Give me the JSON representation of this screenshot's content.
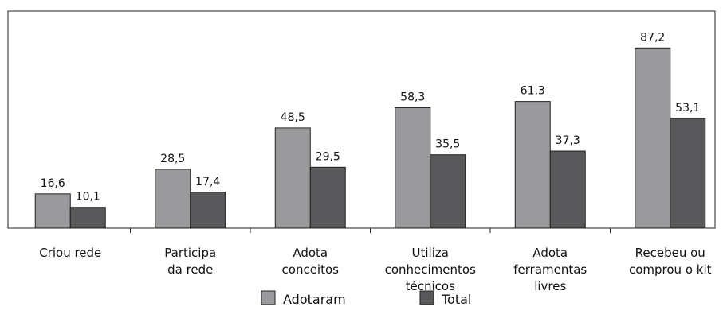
{
  "chart_data": {
    "type": "bar",
    "categories": [
      "Criou rede",
      "Participa\nda rede",
      "Adota\nconceitos",
      "Utiliza\nconhecimentos\ntécnicos",
      "Adota\nferramentas\nlivres",
      "Recebeu ou\ncomprou o kit"
    ],
    "series": [
      {
        "name": "Adotaram",
        "color": "#9a9a9d",
        "values": [
          16.6,
          28.5,
          48.5,
          58.3,
          61.3,
          87.2
        ],
        "value_labels": [
          "16,6",
          "28,5",
          "48,5",
          "58,3",
          "61,3",
          "87,2"
        ]
      },
      {
        "name": "Total",
        "color": "#58585a",
        "values": [
          10.1,
          17.4,
          29.5,
          35.5,
          37.3,
          53.1
        ],
        "value_labels": [
          "10,1",
          "17,4",
          "29,5",
          "35,5",
          "37,3",
          "53,1"
        ]
      }
    ],
    "ylim": [
      0,
      100
    ]
  }
}
